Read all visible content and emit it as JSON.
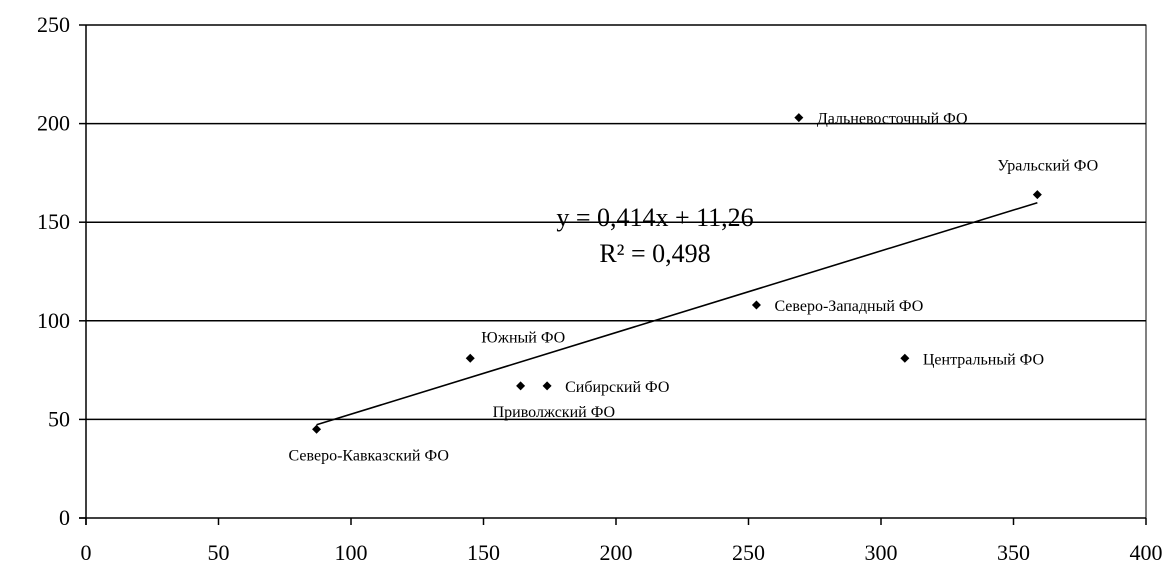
{
  "chart_data": {
    "type": "scatter",
    "title": "",
    "xlabel": "",
    "ylabel": "",
    "xlim": [
      0,
      400
    ],
    "ylim": [
      0,
      250
    ],
    "x_ticks": [
      0,
      50,
      100,
      150,
      200,
      250,
      300,
      350,
      400
    ],
    "y_ticks": [
      0,
      50,
      100,
      150,
      200,
      250
    ],
    "x_tick_labels": [
      "0",
      "50",
      "100",
      "150",
      "200",
      "250",
      "300",
      "350",
      "400"
    ],
    "y_tick_labels": [
      "0",
      "50",
      "100",
      "150",
      "200",
      "250"
    ],
    "grid": "horizontal",
    "legend": "none",
    "points": [
      {
        "label": "Северо-Кавказский ФО",
        "x": 87,
        "y": 45,
        "label_pos": "below"
      },
      {
        "label": "Южный ФО",
        "x": 145,
        "y": 81,
        "label_pos": "above-right"
      },
      {
        "label": "Приволжский ФО",
        "x": 164,
        "y": 67,
        "label_pos": "below"
      },
      {
        "label": "Сибирский ФО",
        "x": 174,
        "y": 67,
        "label_pos": "right"
      },
      {
        "label": "Северо-Западный ФО",
        "x": 253,
        "y": 108,
        "label_pos": "right"
      },
      {
        "label": "Дальневосточный ФО",
        "x": 269,
        "y": 203,
        "label_pos": "right"
      },
      {
        "label": "Центральный ФО",
        "x": 309,
        "y": 81,
        "label_pos": "right"
      },
      {
        "label": "Уральский ФО",
        "x": 359,
        "y": 164,
        "label_pos": "above"
      }
    ],
    "trendline": {
      "type": "linear",
      "slope": 0.414,
      "intercept": 11.26,
      "x_range": [
        87,
        359
      ],
      "equation": "y = 0,414x + 11,26",
      "r2_label": "R² = 0,498"
    },
    "colors": {
      "marker": "#000000",
      "line": "#000000",
      "grid": "#000000"
    }
  }
}
